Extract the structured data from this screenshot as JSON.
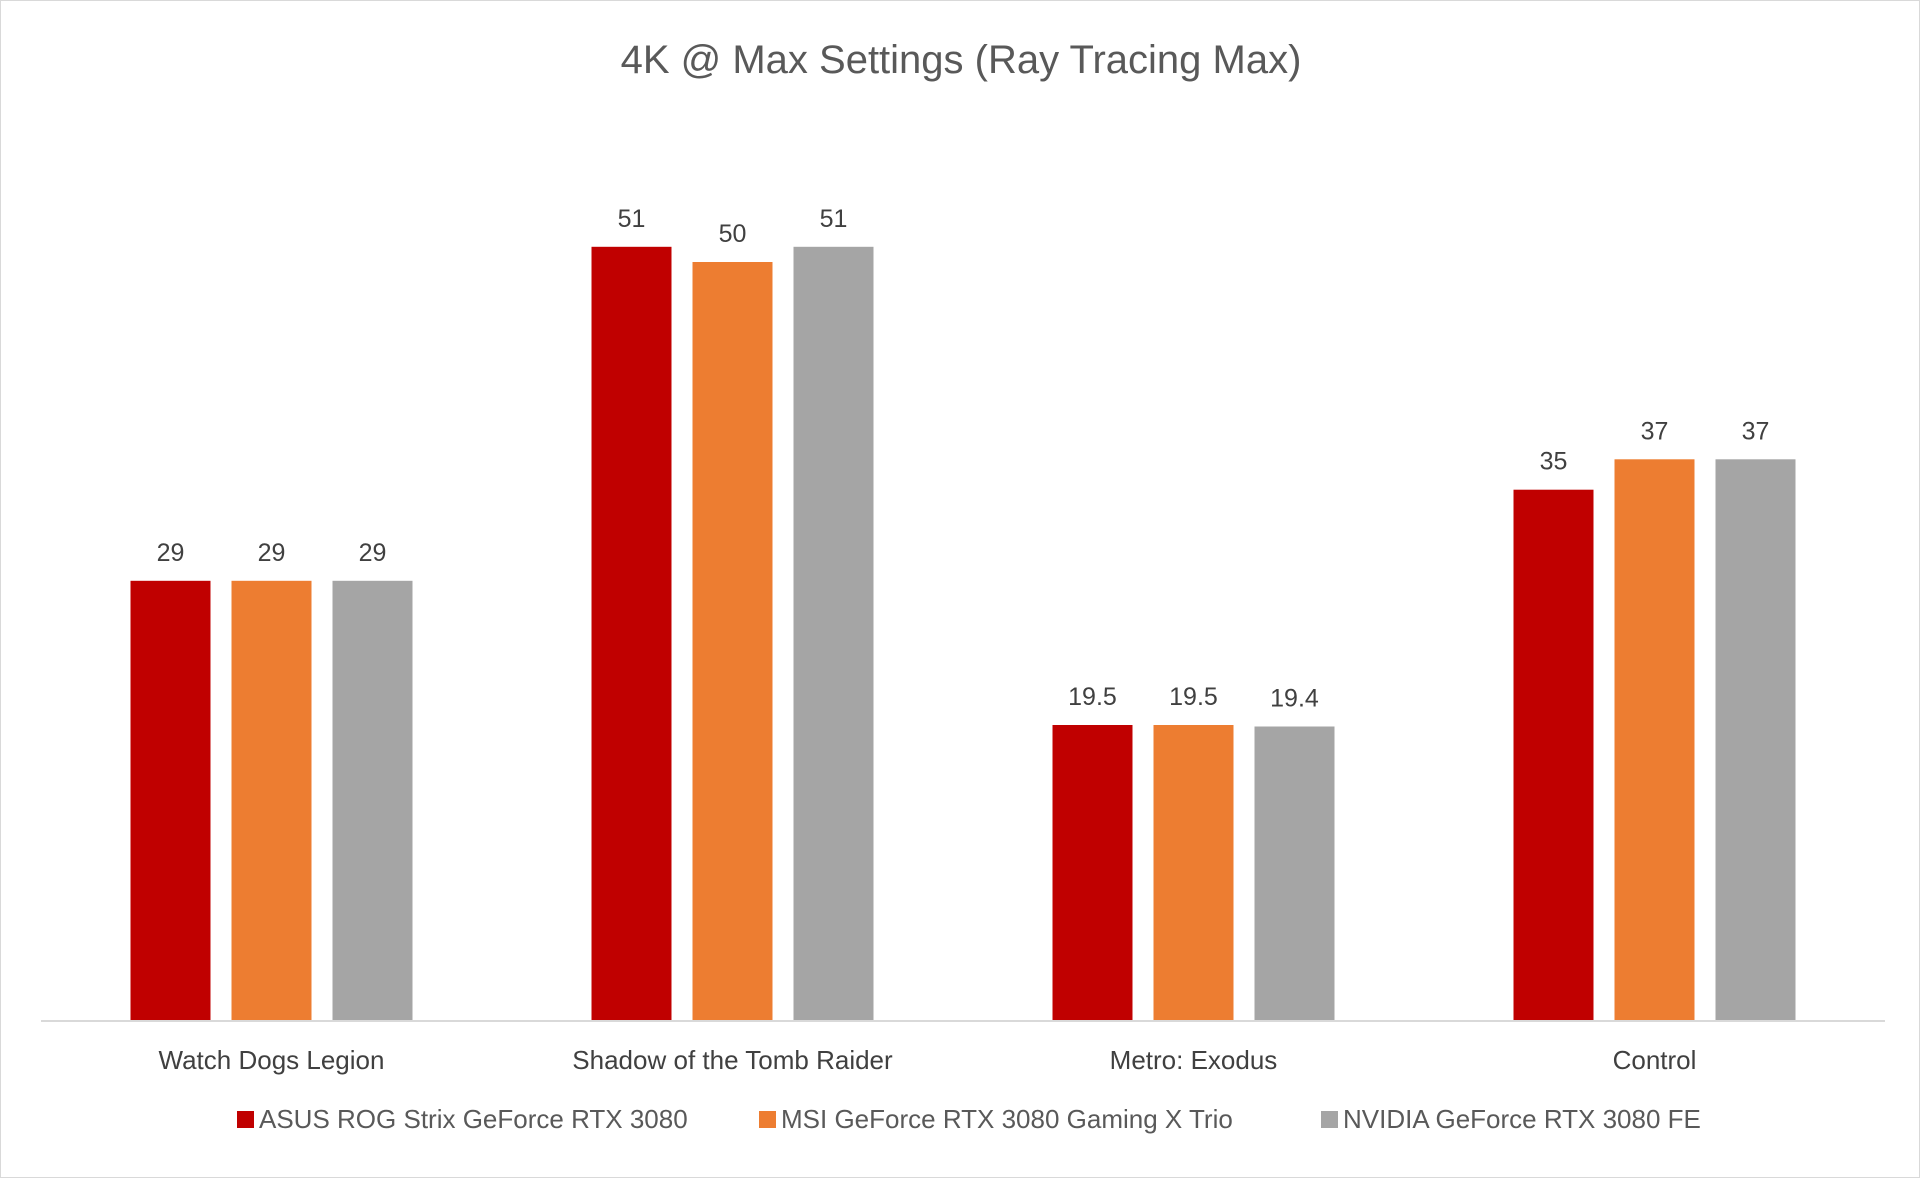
{
  "chart_data": {
    "type": "bar",
    "title": "4K @ Max Settings (Ray Tracing Max)",
    "xlabel": "",
    "ylabel": "",
    "ylim": [
      0,
      60
    ],
    "grid": false,
    "legend_position": "bottom",
    "categories": [
      "Watch Dogs Legion",
      "Shadow of the Tomb Raider",
      "Metro: Exodus",
      "Control"
    ],
    "series": [
      {
        "name": "ASUS ROG Strix GeForce RTX 3080",
        "color": "#c00000",
        "values": [
          29,
          51,
          19.5,
          35
        ]
      },
      {
        "name": "MSI GeForce RTX 3080 Gaming X Trio",
        "color": "#ed7d31",
        "values": [
          29,
          50,
          19.5,
          37
        ]
      },
      {
        "name": "NVIDIA GeForce RTX 3080 FE",
        "color": "#a5a5a5",
        "values": [
          29,
          51,
          19.4,
          37
        ]
      }
    ]
  }
}
